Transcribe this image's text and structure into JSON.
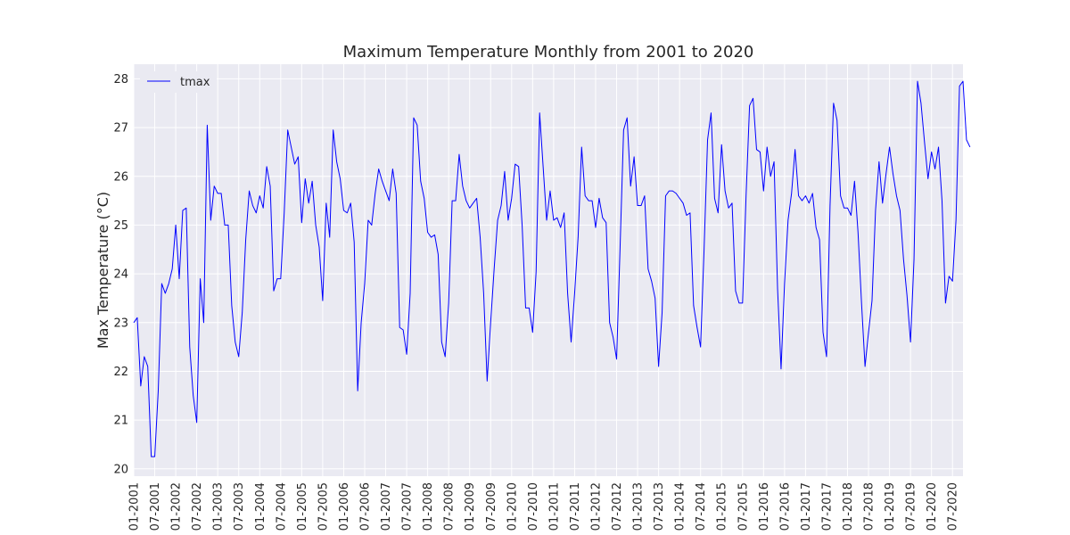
{
  "chart_data": {
    "type": "line",
    "title": "Maximum Temperature Monthly from 2001 to 2020",
    "xlabel": "",
    "ylabel": "Max Temperature (°C)",
    "legend": {
      "placement": "top-left",
      "entries": [
        "tmax"
      ]
    },
    "grid": true,
    "ylim": [
      19.85,
      28.3
    ],
    "yticks": [
      20,
      21,
      22,
      23,
      24,
      25,
      26,
      27,
      28
    ],
    "xrange": [
      "01-2001",
      "10-2020"
    ],
    "xticks": [
      "01-2001",
      "07-2001",
      "01-2002",
      "07-2002",
      "01-2003",
      "07-2003",
      "01-2004",
      "07-2004",
      "01-2005",
      "07-2005",
      "01-2006",
      "07-2006",
      "01-2007",
      "07-2007",
      "01-2008",
      "07-2008",
      "01-2009",
      "07-2009",
      "01-2010",
      "07-2010",
      "01-2011",
      "07-2011",
      "01-2012",
      "07-2012",
      "01-2013",
      "07-2013",
      "01-2014",
      "07-2014",
      "01-2015",
      "07-2015",
      "01-2016",
      "07-2016",
      "01-2017",
      "07-2017",
      "01-2018",
      "07-2018",
      "01-2019",
      "07-2019",
      "01-2020",
      "07-2020"
    ],
    "colors": {
      "line": "#0000ff",
      "plot_bg": "#eaeaf2",
      "grid": "#ffffff"
    },
    "series": [
      {
        "name": "tmax",
        "start": "01-2001",
        "frequency": "monthly",
        "values": [
          23.0,
          23.1,
          21.7,
          22.3,
          22.1,
          20.25,
          20.25,
          21.6,
          23.8,
          23.6,
          23.8,
          24.1,
          25.0,
          23.9,
          25.3,
          25.35,
          22.5,
          21.5,
          20.95,
          23.9,
          23.0,
          27.05,
          25.1,
          25.8,
          25.65,
          25.65,
          25.0,
          25.0,
          23.35,
          22.6,
          22.3,
          23.2,
          24.7,
          25.7,
          25.4,
          25.25,
          25.6,
          25.35,
          26.2,
          25.8,
          23.65,
          23.9,
          23.9,
          25.25,
          26.95,
          26.6,
          26.25,
          26.4,
          25.05,
          25.95,
          25.45,
          25.9,
          25.0,
          24.55,
          23.45,
          25.45,
          24.75,
          26.95,
          26.3,
          25.95,
          25.3,
          25.25,
          25.45,
          24.65,
          21.6,
          23.0,
          23.8,
          25.1,
          25.0,
          25.65,
          26.15,
          25.9,
          25.7,
          25.5,
          26.15,
          25.65,
          22.9,
          22.85,
          22.35,
          23.6,
          27.2,
          27.05,
          25.9,
          25.55,
          24.85,
          24.75,
          24.8,
          24.4,
          22.6,
          22.3,
          23.4,
          25.5,
          25.5,
          26.45,
          25.8,
          25.5,
          25.35,
          25.45,
          25.55,
          24.75,
          23.6,
          21.8,
          23.0,
          24.1,
          25.1,
          25.4,
          26.1,
          25.1,
          25.55,
          26.25,
          26.2,
          25.0,
          23.3,
          23.3,
          22.8,
          24.05,
          27.3,
          26.2,
          25.1,
          25.7,
          25.1,
          25.15,
          24.95,
          25.25,
          23.6,
          22.6,
          23.6,
          24.75,
          26.6,
          25.6,
          25.5,
          25.5,
          24.95,
          25.55,
          25.15,
          25.05,
          23.0,
          22.7,
          22.25,
          24.55,
          26.95,
          27.2,
          25.8,
          26.4,
          25.4,
          25.4,
          25.6,
          24.1,
          23.85,
          23.5,
          22.1,
          23.2,
          25.6,
          25.7,
          25.7,
          25.65,
          25.55,
          25.45,
          25.2,
          25.25,
          23.35,
          22.9,
          22.5,
          24.5,
          26.75,
          27.3,
          25.55,
          25.25,
          26.65,
          25.7,
          25.35,
          25.45,
          23.65,
          23.4,
          23.4,
          25.6,
          27.45,
          27.6,
          26.55,
          26.5,
          25.7,
          26.6,
          26.0,
          26.3,
          23.7,
          22.05,
          23.8,
          25.1,
          25.65,
          26.55,
          25.6,
          25.5,
          25.6,
          25.45,
          25.65,
          24.95,
          24.7,
          22.8,
          22.3,
          25.4,
          27.5,
          27.15,
          25.6,
          25.35,
          25.35,
          25.2,
          25.9,
          24.85,
          23.4,
          22.1,
          22.8,
          23.45,
          25.3,
          26.3,
          25.45,
          26.05,
          26.6,
          26.05,
          25.6,
          25.3,
          24.3,
          23.55,
          22.6,
          24.3,
          27.95,
          27.5,
          26.7,
          25.95,
          26.5,
          26.15,
          26.6,
          25.5,
          23.4,
          23.95,
          23.85,
          25.1,
          27.85,
          27.95,
          26.75,
          26.6
        ]
      }
    ]
  }
}
